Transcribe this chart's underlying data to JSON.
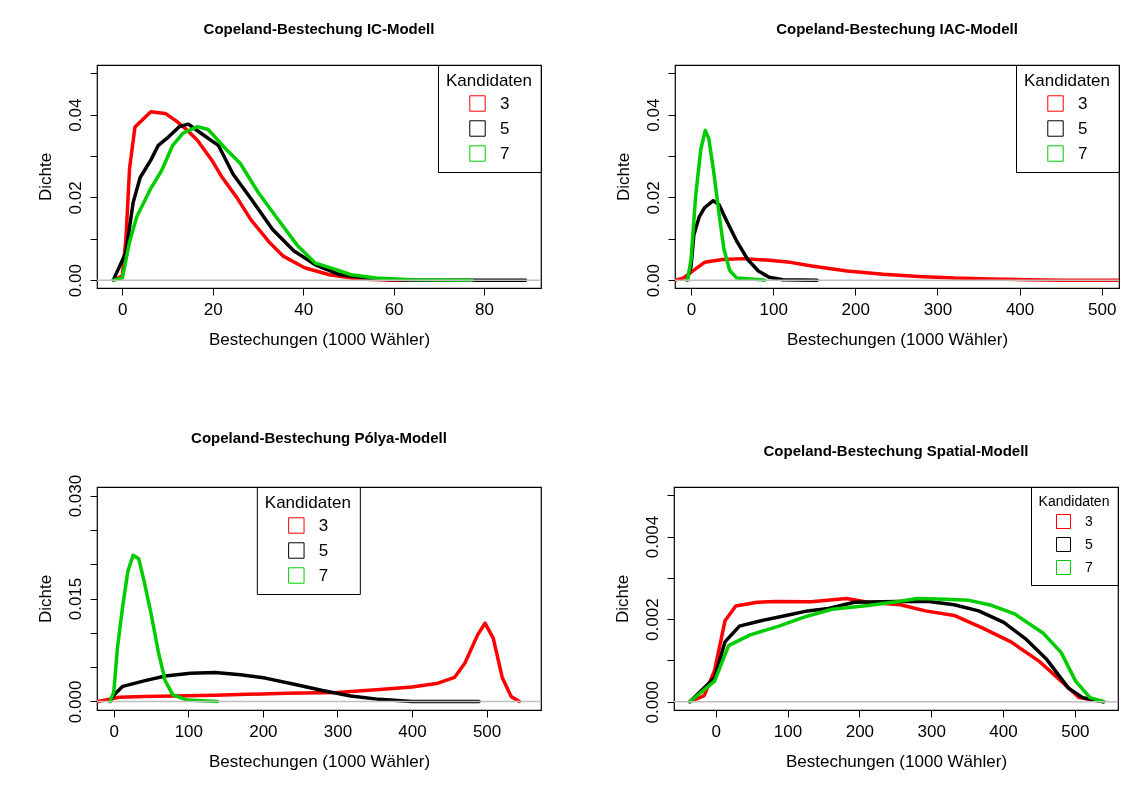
{
  "chart_data": [
    {
      "type": "line",
      "title": "Copeland-Bestechung IC-Modell",
      "xlabel": "Bestechungen (1000 Wähler)",
      "ylabel": "Dichte",
      "legend_title": "Kandidaten",
      "legend": "top right",
      "grid": false,
      "xlim": [
        -5.6,
        92.6
      ],
      "xticks": [
        0,
        20,
        40,
        60,
        80
      ],
      "ylim": [
        -0.0019,
        0.052
      ],
      "yticks": [
        {
          "value": 0,
          "label": "0.00"
        },
        {
          "value": 0.01,
          "label": null
        },
        {
          "value": 0.02,
          "label": "0.02"
        },
        {
          "value": 0.03,
          "label": null
        },
        {
          "value": 0.04,
          "label": "0.04"
        },
        {
          "value": 0.05,
          "label": null
        }
      ],
      "ref_lines": [
        {
          "axis": "y",
          "value": 0,
          "color": "#bebebe"
        }
      ],
      "series": [
        {
          "name": "3",
          "color": "#ff0000",
          "x": [
            -2,
            0,
            0.8,
            1.6,
            2.8,
            4.7,
            6.3,
            9.5,
            11.9,
            14.2,
            16.6,
            19.8,
            22.1,
            25.3,
            28.5,
            32.4,
            35.6,
            40.3,
            45.8,
            52.2,
            60,
            65
          ],
          "values": [
            0,
            0.001,
            0.01,
            0.027,
            0.037,
            0.039,
            0.0407,
            0.0403,
            0.0385,
            0.0364,
            0.0338,
            0.029,
            0.0248,
            0.02,
            0.0145,
            0.0093,
            0.0058,
            0.003,
            0.0013,
            0.0003,
            0,
            0
          ]
        },
        {
          "name": "5",
          "color": "#000000",
          "x": [
            -2,
            0.8,
            2.4,
            3.95,
            6.3,
            7.9,
            10.3,
            12.6,
            14.6,
            17.4,
            21.3,
            24.5,
            28.5,
            33.2,
            37.9,
            42.7,
            48.2,
            56.1,
            64,
            89.2
          ],
          "values": [
            0,
            0.0067,
            0.0188,
            0.0248,
            0.029,
            0.0325,
            0.0347,
            0.0371,
            0.0377,
            0.0355,
            0.0325,
            0.0256,
            0.0196,
            0.0123,
            0.0071,
            0.0037,
            0.0013,
            0.0003,
            0,
            0
          ]
        },
        {
          "name": "7",
          "color": "#00cd00",
          "x": [
            -2,
            0,
            1.6,
            3.2,
            6.3,
            8.7,
            11.1,
            13.4,
            16.6,
            19,
            22.9,
            26.1,
            30,
            34,
            38.7,
            42.7,
            46.6,
            50.6,
            56.1,
            64,
            77.3
          ],
          "values": [
            0,
            0.0005,
            0.0093,
            0.0153,
            0.0222,
            0.0265,
            0.0325,
            0.0355,
            0.0371,
            0.0364,
            0.0317,
            0.0282,
            0.0213,
            0.0153,
            0.0084,
            0.0041,
            0.0028,
            0.0013,
            0.0005,
            0.0001,
            0
          ]
        }
      ]
    },
    {
      "type": "line",
      "title": "Copeland-Bestechung IAC-Modell",
      "xlabel": "Bestechungen (1000 Wähler)",
      "ylabel": "Dichte",
      "legend_title": "Kandidaten",
      "legend": "top right",
      "grid": false,
      "xlim": [
        -19.5,
        521
      ],
      "xticks": [
        0,
        100,
        200,
        300,
        400,
        500
      ],
      "ylim": [
        -0.0019,
        0.052
      ],
      "yticks": [
        {
          "value": 0,
          "label": "0.00"
        },
        {
          "value": 0.01,
          "label": null
        },
        {
          "value": 0.02,
          "label": "0.02"
        },
        {
          "value": 0.03,
          "label": null
        },
        {
          "value": 0.04,
          "label": "0.04"
        },
        {
          "value": 0.05,
          "label": null
        }
      ],
      "ref_lines": [
        {
          "axis": "y",
          "value": 0,
          "color": "#bebebe"
        }
      ],
      "series": [
        {
          "name": "3",
          "color": "#ff0000",
          "x": [
            -19,
            -9.6,
            3.5,
            16.5,
            38,
            64,
            95,
            121,
            147,
            190,
            234,
            277,
            321,
            364,
            408,
            451,
            520
          ],
          "values": [
            0,
            0.0005,
            0.0024,
            0.0043,
            0.005,
            0.0052,
            0.0048,
            0.0043,
            0.0034,
            0.0022,
            0.0014,
            0.0009,
            0.0005,
            0.0003,
            0.0001,
            0,
            0
          ]
        },
        {
          "name": "5",
          "color": "#000000",
          "x": [
            -5,
            0,
            3.5,
            10,
            16.5,
            27,
            34,
            43,
            56,
            69,
            82,
            95,
            112,
            153.5
          ],
          "values": [
            0,
            0.0033,
            0.011,
            0.0153,
            0.0175,
            0.0192,
            0.0183,
            0.0145,
            0.0093,
            0.005,
            0.0022,
            0.0007,
            0.0001,
            0
          ]
        },
        {
          "name": "7",
          "color": "#00cd00",
          "x": [
            -4.3,
            0,
            5.7,
            12,
            17.4,
            21.7,
            27.4,
            34,
            40,
            47,
            55.7,
            89.6
          ],
          "values": [
            0,
            0.005,
            0.0205,
            0.0317,
            0.0362,
            0.0342,
            0.0265,
            0.0162,
            0.0076,
            0.0024,
            0.0005,
            0
          ]
        }
      ]
    },
    {
      "type": "line",
      "title": "Copeland-Bestechung Pólya-Modell",
      "xlabel": "Bestechungen (1000 Wähler)",
      "ylabel": "Dichte",
      "legend_title": "Kandidaten",
      "legend": "top",
      "grid": false,
      "xlim": [
        -22.5,
        573
      ],
      "xticks": [
        0,
        100,
        200,
        300,
        400,
        500
      ],
      "ylim": [
        -0.00125,
        0.03125
      ],
      "yticks": [
        {
          "value": 0,
          "label": "0.000"
        },
        {
          "value": 0.005,
          "label": null
        },
        {
          "value": 0.01,
          "label": null
        },
        {
          "value": 0.015,
          "label": "0.015"
        },
        {
          "value": 0.02,
          "label": null
        },
        {
          "value": 0.025,
          "label": null
        },
        {
          "value": 0.03,
          "label": "0.030"
        }
      ],
      "ref_lines": [
        {
          "axis": "y",
          "value": 0,
          "color": "#bebebe"
        }
      ],
      "series": [
        {
          "name": "3",
          "color": "#ff0000",
          "x": [
            -21.5,
            -7,
            7,
            41,
            136,
            232,
            299,
            352,
            400,
            433,
            457,
            471,
            488,
            498,
            509,
            521,
            533,
            544
          ],
          "values": [
            0,
            0.0003,
            0.0006,
            0.0007,
            0.0009,
            0.0012,
            0.0013,
            0.0017,
            0.0021,
            0.0026,
            0.0035,
            0.0056,
            0.0097,
            0.0114,
            0.0092,
            0.0035,
            0.0007,
            0
          ]
        },
        {
          "name": "5",
          "color": "#000000",
          "x": [
            -4.8,
            0,
            12,
            40.7,
            69,
            103,
            136,
            170,
            203,
            242,
            280,
            318,
            356,
            400,
            490
          ],
          "values": [
            0,
            0.0009,
            0.0022,
            0.003,
            0.0037,
            0.0041,
            0.0042,
            0.0039,
            0.0034,
            0.0025,
            0.0016,
            0.0008,
            0.0003,
            0,
            0
          ]
        },
        {
          "name": "7",
          "color": "#00cd00",
          "x": [
            -4.8,
            0,
            4.8,
            12,
            19,
            26,
            33.5,
            40.7,
            50,
            60,
            69,
            79,
            98,
            139
          ],
          "values": [
            0,
            0.0014,
            0.0077,
            0.0139,
            0.019,
            0.0213,
            0.0208,
            0.0175,
            0.0128,
            0.0071,
            0.003,
            0.001,
            0.0002,
            0
          ]
        }
      ]
    },
    {
      "type": "line",
      "title": "Copeland-Bestechung Spatial-Modell",
      "xlabel": "Bestechungen (1000 Wähler)",
      "ylabel": "Dichte",
      "legend_title": "Kandidaten",
      "legend": "top right",
      "grid": false,
      "xlim": [
        -58,
        560
      ],
      "xticks": [
        0,
        100,
        200,
        300,
        400,
        500
      ],
      "ylim": [
        -0.0002,
        0.0052
      ],
      "yticks": [
        {
          "value": 0,
          "label": "0.000"
        },
        {
          "value": 0.001,
          "label": null
        },
        {
          "value": 0.002,
          "label": "0.002"
        },
        {
          "value": 0.003,
          "label": null
        },
        {
          "value": 0.004,
          "label": "0.004"
        },
        {
          "value": 0.005,
          "label": null
        }
      ],
      "ref_lines": [
        {
          "axis": "y",
          "value": 0,
          "color": "#bebebe"
        }
      ],
      "series": [
        {
          "name": "3",
          "color": "#ff0000",
          "x": [
            -36,
            -16,
            -1.5,
            13,
            28,
            58,
            83,
            133,
            182,
            212,
            257,
            292,
            332,
            371,
            411,
            451,
            481,
            506,
            540
          ],
          "values": [
            0,
            0.00015,
            0.00076,
            0.00196,
            0.00232,
            0.00241,
            0.00243,
            0.00242,
            0.0025,
            0.00241,
            0.00235,
            0.0022,
            0.00209,
            0.00179,
            0.00145,
            0.00097,
            0.0005,
            0.0001,
            0
          ]
        },
        {
          "name": "5",
          "color": "#000000",
          "x": [
            -36,
            -1.5,
            13,
            33,
            63,
            98,
            128,
            157,
            193,
            252,
            297,
            332,
            366,
            401,
            431,
            461,
            491,
            511,
            540
          ],
          "values": [
            0,
            0.00058,
            0.00145,
            0.00183,
            0.00196,
            0.00209,
            0.0022,
            0.00226,
            0.00241,
            0.00243,
            0.00243,
            0.00235,
            0.0022,
            0.00192,
            0.00153,
            0.00102,
            0.00033,
            0.0001,
            0
          ]
        },
        {
          "name": "7",
          "color": "#00cd00",
          "x": [
            -36,
            -1.5,
            18,
            48,
            88,
            123,
            162,
            212,
            252,
            281,
            321,
            351,
            381,
            416,
            456,
            481,
            501,
            521,
            540
          ],
          "values": [
            0,
            0.0005,
            0.00136,
            0.00162,
            0.00183,
            0.00205,
            0.00224,
            0.00233,
            0.00242,
            0.0025,
            0.00248,
            0.00246,
            0.00235,
            0.00213,
            0.00166,
            0.00119,
            0.0005,
            0.0001,
            0
          ]
        }
      ]
    }
  ]
}
